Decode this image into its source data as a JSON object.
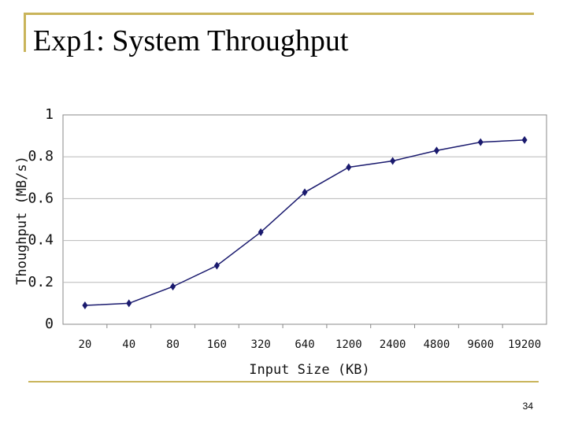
{
  "slide": {
    "title": "Exp1: System Throughput",
    "page_number": "34",
    "accent_color": "#c9b45a"
  },
  "chart_data": {
    "type": "line",
    "title": "",
    "xlabel": "Input Size (KB)",
    "ylabel": "Thoughput (MB/s)",
    "categories": [
      "20",
      "40",
      "80",
      "160",
      "320",
      "640",
      "1200",
      "2400",
      "4800",
      "9600",
      "19200"
    ],
    "series": [
      {
        "values": [
          0.09,
          0.1,
          0.18,
          0.28,
          0.44,
          0.63,
          0.75,
          0.78,
          0.83,
          0.87,
          0.88
        ],
        "color": "#1a1a6e",
        "marker": "diamond"
      }
    ],
    "ylim": [
      0,
      1
    ],
    "yticks": [
      "0",
      "0.2",
      "0.4",
      "0.6",
      "0.8",
      "1"
    ],
    "grid": true
  }
}
